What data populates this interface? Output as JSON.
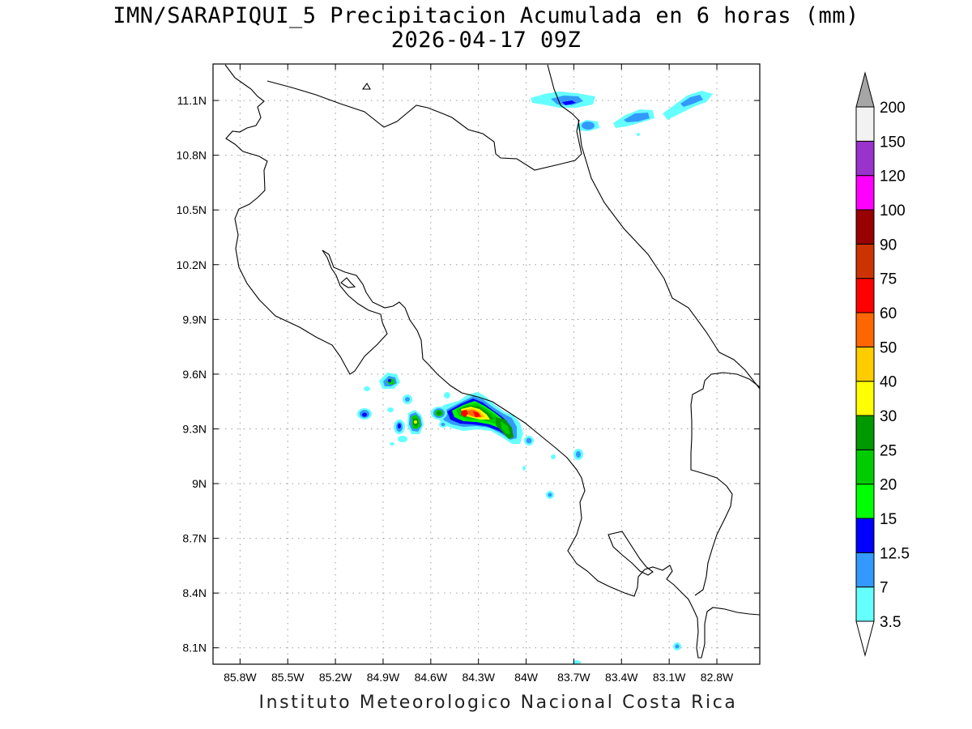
{
  "title": {
    "main": "IMN/SARAPIQUI_5 Precipitacion Acumulada en 6 horas (mm)",
    "time": "2026-04-17 09Z"
  },
  "footer": "Instituto Meteorologico Nacional Costa Rica",
  "map": {
    "lon_labels": [
      "85.8W",
      "85.5W",
      "85.2W",
      "84.9W",
      "84.6W",
      "84.3W",
      "84W",
      "83.7W",
      "83.4W",
      "83.1W",
      "82.8W"
    ],
    "lon_values": [
      -85.8,
      -85.5,
      -85.2,
      -84.9,
      -84.6,
      -84.3,
      -84.0,
      -83.7,
      -83.4,
      -83.1,
      -82.8
    ],
    "lat_labels": [
      "11.1N",
      "10.8N",
      "10.5N",
      "10.2N",
      "9.9N",
      "9.6N",
      "9.3N",
      "9N",
      "8.7N",
      "8.4N",
      "8.1N"
    ],
    "lat_values": [
      11.1,
      10.8,
      10.5,
      10.2,
      9.9,
      9.6,
      9.3,
      9.0,
      8.7,
      8.4,
      8.1
    ],
    "lon_range": [
      -85.97,
      -82.53
    ],
    "lat_range": [
      8.01,
      11.3
    ],
    "grid": true
  },
  "colorbar": {
    "labels": [
      "3.5",
      "7",
      "12.5",
      "15",
      "20",
      "25",
      "30",
      "40",
      "50",
      "60",
      "75",
      "90",
      "100",
      "120",
      "150",
      "200"
    ],
    "colors": [
      "#66ffff",
      "#3399ff",
      "#0000ff",
      "#00ff00",
      "#00cc00",
      "#009900",
      "#ffff00",
      "#ffcc00",
      "#ff6600",
      "#ff0000",
      "#cc3300",
      "#990000",
      "#ff00ff",
      "#9933cc",
      "#f2f2f2",
      "#a6a6a6"
    ]
  },
  "chart_data": {
    "type": "heatmap",
    "title": "IMN/SARAPIQUI_5 Precipitacion Acumulada en 6 horas (mm)",
    "subtitle": "2026-04-17 09Z",
    "units": "mm",
    "levels": [
      3.5,
      7,
      12.5,
      15,
      20,
      25,
      30,
      40,
      50,
      60,
      75,
      90,
      100,
      120,
      150,
      200
    ],
    "cells": [
      {
        "lon": -84.33,
        "lat": 9.37,
        "max_mm": 60
      },
      {
        "lon": -84.17,
        "lat": 9.31,
        "max_mm": 25
      },
      {
        "lon": -84.08,
        "lat": 9.26,
        "max_mm": 15
      },
      {
        "lon": -84.52,
        "lat": 9.37,
        "max_mm": 25
      },
      {
        "lon": -84.73,
        "lat": 9.32,
        "max_mm": 25
      },
      {
        "lon": -84.87,
        "lat": 9.56,
        "max_mm": 25
      },
      {
        "lon": -84.81,
        "lat": 9.31,
        "max_mm": 12.5
      },
      {
        "lon": -85.05,
        "lat": 9.37,
        "max_mm": 12.5
      },
      {
        "lon": -83.97,
        "lat": 9.23,
        "max_mm": 7
      },
      {
        "lon": -83.66,
        "lat": 9.15,
        "max_mm": 7
      },
      {
        "lon": -83.78,
        "lat": 8.91,
        "max_mm": 7
      },
      {
        "lon": -83.7,
        "lat": 11.09,
        "max_mm": 12.5
      },
      {
        "lon": -83.64,
        "lat": 10.96,
        "max_mm": 7
      },
      {
        "lon": -83.28,
        "lat": 11.0,
        "max_mm": 7
      },
      {
        "lon": -82.95,
        "lat": 11.12,
        "max_mm": 7
      },
      {
        "lon": -83.04,
        "lat": 8.1,
        "max_mm": 7
      }
    ]
  }
}
